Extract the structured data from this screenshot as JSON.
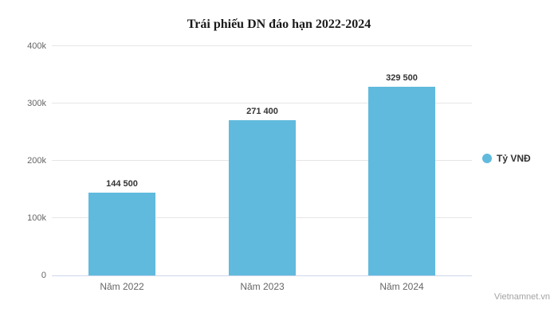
{
  "watermark": "Vietnamnet.vn",
  "chart_data": {
    "type": "bar",
    "title": "Trái phiếu DN đáo hạn 2022-2024",
    "categories": [
      "Năm 2022",
      "Năm 2023",
      "Năm 2024"
    ],
    "series": [
      {
        "name": "Tỷ VNĐ",
        "values": [
          144500,
          271400,
          329500
        ]
      }
    ],
    "value_labels": [
      "144 500",
      "271 400",
      "329 500"
    ],
    "xlabel": "",
    "ylabel": "",
    "ylim": [
      0,
      400000
    ],
    "yticks": [
      0,
      100000,
      200000,
      300000,
      400000
    ],
    "ytick_labels": [
      "0",
      "100k",
      "200k",
      "300k",
      "400k"
    ],
    "grid": true,
    "legend_position": "right",
    "colors": {
      "bar": "#60badd",
      "grid": "#e6e6e6",
      "axis_line": "#ccd6eb",
      "tick_label": "#666666",
      "value_label": "#333333",
      "watermark": "#a3a3a3"
    }
  }
}
